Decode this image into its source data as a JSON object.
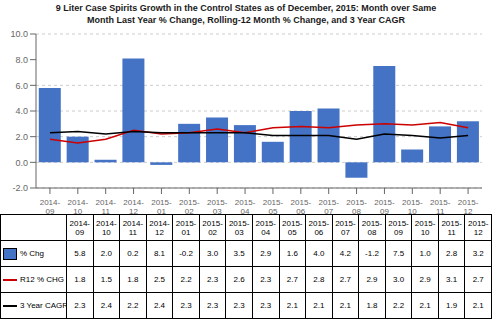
{
  "chart_data": {
    "type": "bar",
    "title": "9 Liter Case Spirits Growth in the Control States as of December, 2015:  Month over Same\nMonth Last Year % Change, Rolling-12 Month % Change, and 3 Year CAGR",
    "categories": [
      "2014-\n09",
      "2014-\n10",
      "2014-\n11",
      "2014-\n12",
      "2015-\n01",
      "2015-\n02",
      "2015-\n03",
      "2015-\n04",
      "2015-\n05",
      "2015-\n06",
      "2015-\n07",
      "2015-\n08",
      "2015-\n09",
      "2015-\n10",
      "2015-\n11",
      "2015-\n12"
    ],
    "series": [
      {
        "name": "% Chg",
        "type": "bar",
        "color": "#4472C4",
        "values": [
          5.8,
          2.0,
          0.2,
          8.1,
          -0.2,
          3.0,
          3.5,
          2.9,
          1.6,
          4.0,
          4.2,
          -1.2,
          7.5,
          1.0,
          2.8,
          3.2
        ],
        "value_labels": [
          "5.8",
          "2.0",
          "0.2",
          "8.1",
          "-0.2",
          "3.0",
          "3.5",
          "2.9",
          "1.6",
          "4.0",
          "4.2",
          "-1.2",
          "7.5",
          "1.0",
          "2.8",
          "3.2"
        ]
      },
      {
        "name": "R12 % CHG",
        "type": "line",
        "color": "#CC0000",
        "values": [
          1.8,
          1.5,
          1.8,
          2.5,
          2.2,
          2.3,
          2.6,
          2.3,
          2.7,
          2.8,
          2.7,
          2.9,
          3.0,
          2.9,
          3.1,
          2.7
        ],
        "value_labels": [
          "1.8",
          "1.5",
          "1.8",
          "2.5",
          "2.2",
          "2.3",
          "2.6",
          "2.3",
          "2.7",
          "2.8",
          "2.7",
          "2.9",
          "3.0",
          "2.9",
          "3.1",
          "2.7"
        ]
      },
      {
        "name": "3 Year CAGR",
        "type": "line",
        "color": "#000000",
        "values": [
          2.3,
          2.4,
          2.2,
          2.4,
          2.3,
          2.3,
          2.3,
          2.3,
          2.1,
          2.1,
          2.1,
          1.8,
          2.2,
          2.1,
          1.9,
          2.1
        ],
        "value_labels": [
          "2.3",
          "2.4",
          "2.2",
          "2.4",
          "2.3",
          "2.3",
          "2.3",
          "2.3",
          "2.1",
          "2.1",
          "2.1",
          "1.8",
          "2.2",
          "2.1",
          "1.9",
          "2.1"
        ]
      }
    ],
    "ylim": [
      -2.0,
      10.0
    ],
    "yticks": [
      {
        "value": -2.0,
        "label": "-2.0"
      },
      {
        "value": 0.0,
        "label": "0.0"
      },
      {
        "value": 2.0,
        "label": "2.0"
      },
      {
        "value": 4.0,
        "label": "4.0"
      },
      {
        "value": 6.0,
        "label": "6.0"
      },
      {
        "value": 8.0,
        "label": "8.0"
      },
      {
        "value": 10.0,
        "label": "10.0"
      }
    ],
    "grid": true
  }
}
